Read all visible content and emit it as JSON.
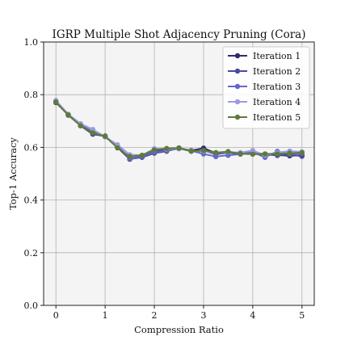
{
  "chart_data": {
    "type": "line",
    "title": "IGRP Multiple Shot Adjacency Pruning (Cora)",
    "xlabel": "Compression Ratio",
    "ylabel": "Top-1 Accuracy",
    "xlim": [
      -0.25,
      5.25
    ],
    "ylim": [
      0.0,
      1.0
    ],
    "xticks": [
      0,
      1,
      2,
      3,
      4,
      5
    ],
    "yticks": [
      0.0,
      0.2,
      0.4,
      0.6,
      0.8,
      1.0
    ],
    "xtick_labels": [
      "0",
      "1",
      "2",
      "3",
      "4",
      "5"
    ],
    "ytick_labels": [
      "0.0",
      "0.2",
      "0.4",
      "0.6",
      "0.8",
      "1.0"
    ],
    "grid": true,
    "legend_position": "top-right",
    "background": "#f4f4f4",
    "x": [
      0,
      0.25,
      0.5,
      0.75,
      1.0,
      1.25,
      1.5,
      1.75,
      2.0,
      2.25,
      2.5,
      2.75,
      3.0,
      3.25,
      3.5,
      3.75,
      4.0,
      4.25,
      4.5,
      4.75,
      5.0
    ],
    "series": [
      {
        "name": "Iteration 1",
        "color": "#2e2d6b",
        "values": [
          0.77,
          0.725,
          0.682,
          0.65,
          0.643,
          0.6,
          0.555,
          0.565,
          0.585,
          0.59,
          0.597,
          0.588,
          0.597,
          0.578,
          0.582,
          0.578,
          0.58,
          0.572,
          0.571,
          0.568,
          0.57
        ]
      },
      {
        "name": "Iteration 2",
        "color": "#4b4a9c",
        "values": [
          0.772,
          0.722,
          0.683,
          0.652,
          0.641,
          0.603,
          0.556,
          0.562,
          0.578,
          0.585,
          0.598,
          0.585,
          0.588,
          0.574,
          0.58,
          0.575,
          0.578,
          0.575,
          0.569,
          0.573,
          0.566
        ]
      },
      {
        "name": "Iteration 3",
        "color": "#6466c9",
        "values": [
          0.774,
          0.724,
          0.686,
          0.66,
          0.64,
          0.606,
          0.558,
          0.566,
          0.582,
          0.588,
          0.595,
          0.587,
          0.575,
          0.565,
          0.57,
          0.574,
          0.582,
          0.562,
          0.585,
          0.574,
          0.578
        ]
      },
      {
        "name": "Iteration 4",
        "color": "#9b9be0",
        "values": [
          0.778,
          0.726,
          0.69,
          0.668,
          0.64,
          0.61,
          0.572,
          0.57,
          0.595,
          0.594,
          0.596,
          0.586,
          0.585,
          0.58,
          0.582,
          0.58,
          0.588,
          0.57,
          0.58,
          0.586,
          0.583
        ]
      },
      {
        "name": "Iteration 5",
        "color": "#5e7b3a",
        "values": [
          0.772,
          0.723,
          0.682,
          0.655,
          0.642,
          0.598,
          0.565,
          0.57,
          0.59,
          0.596,
          0.597,
          0.585,
          0.588,
          0.58,
          0.584,
          0.576,
          0.574,
          0.575,
          0.575,
          0.578,
          0.58
        ]
      }
    ]
  }
}
